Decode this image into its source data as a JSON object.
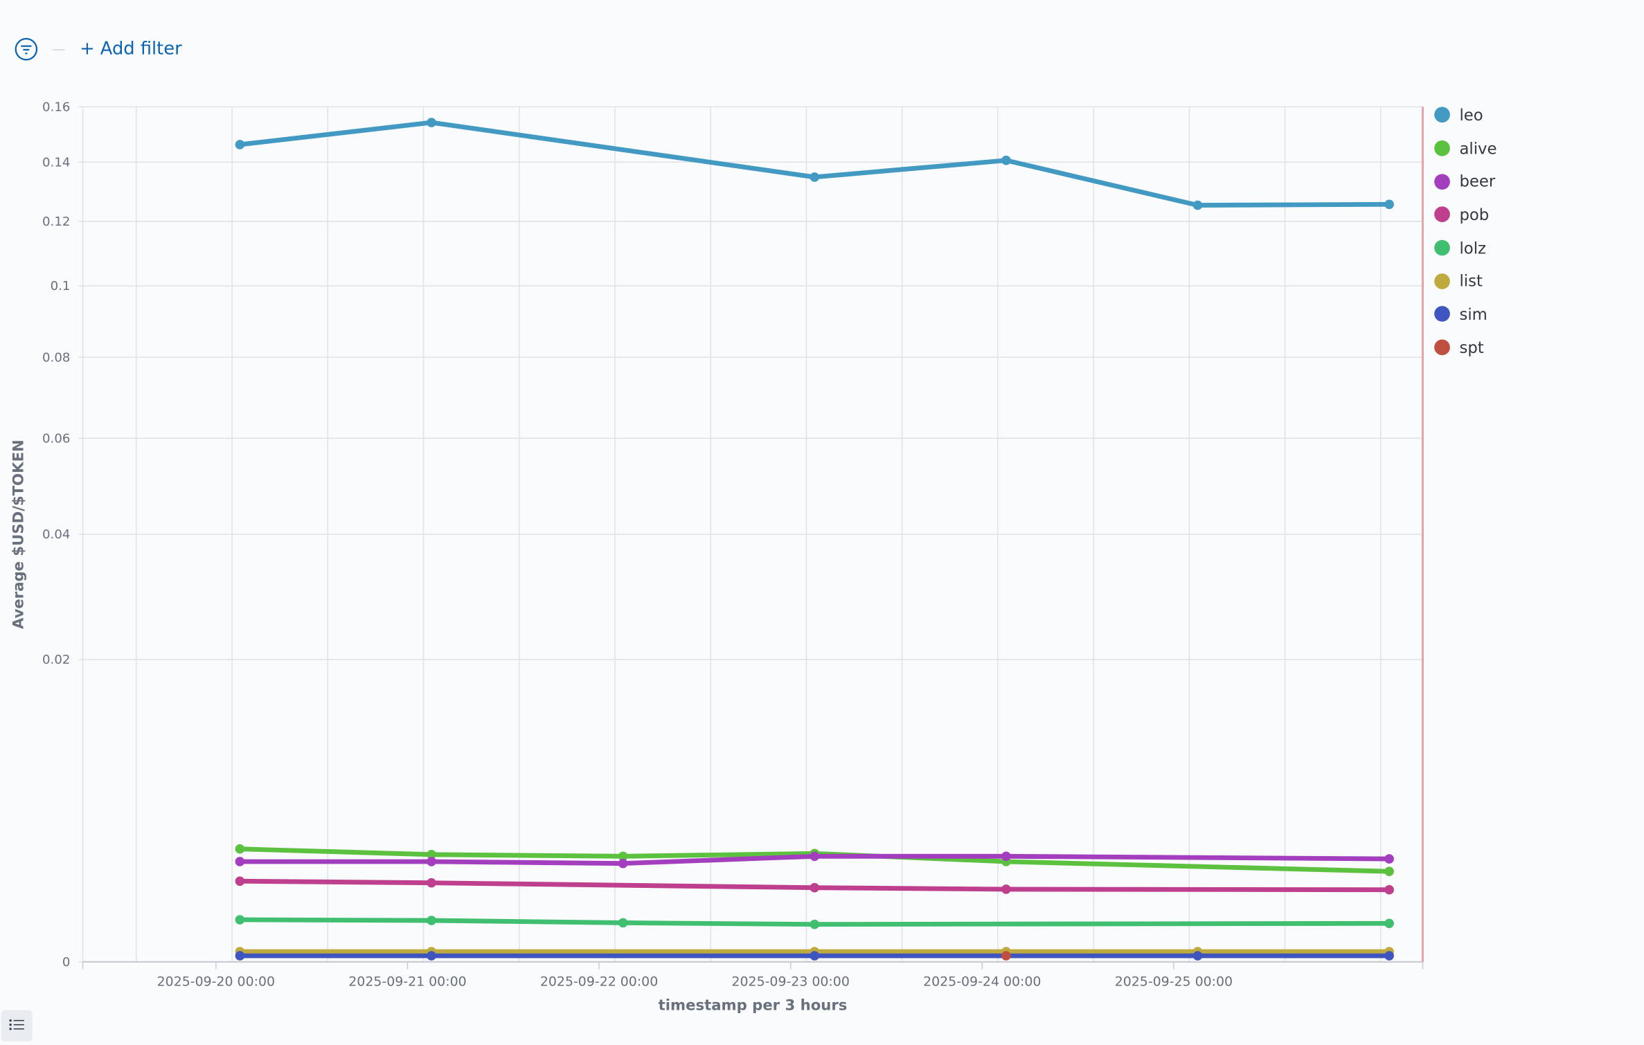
{
  "filter_bar": {
    "add_filter_label": "+ Add filter",
    "icon": "filter-icon"
  },
  "legend_toggle_icon": "list-icon",
  "chart_data": {
    "type": "line",
    "title": "",
    "xlabel": "timestamp per 3 hours",
    "ylabel": "Average $USD/$TOKEN",
    "y_scale": "sqrt",
    "ylim": [
      0,
      0.16
    ],
    "y_ticks": [
      0,
      0.02,
      0.04,
      0.06,
      0.08,
      0.1,
      0.12,
      0.14,
      0.16
    ],
    "y_tick_labels": [
      "0",
      "0.02",
      "0.04",
      "0.06",
      "0.08",
      "0.1",
      "0.12",
      "0.14",
      "0.16"
    ],
    "x_range_days": [
      -0.695,
      6.3
    ],
    "x_ticks_days": [
      0,
      1,
      2,
      3,
      4,
      5
    ],
    "x_tick_labels": [
      "2025-09-20 00:00",
      "2025-09-21 00:00",
      "2025-09-22 00:00",
      "2025-09-23 00:00",
      "2025-09-24 00:00",
      "2025-09-25 00:00"
    ],
    "x": [
      "2025-09-20 03:00",
      "2025-09-21 03:00",
      "2025-09-22 03:00",
      "2025-09-23 03:00",
      "2025-09-24 03:00",
      "2025-09-25 03:00",
      "2025-09-26 03:00"
    ],
    "x_days": [
      0.125,
      1.125,
      2.125,
      3.125,
      4.125,
      5.125,
      6.125
    ],
    "grid": true,
    "legend_position": "right",
    "series": [
      {
        "name": "leo",
        "color": "#4299c1",
        "values": [
          0.1462,
          0.1542,
          null,
          0.1348,
          0.1406,
          0.1253,
          0.1256
        ]
      },
      {
        "name": "alive",
        "color": "#5bc13f",
        "values": [
          0.00279,
          0.00252,
          0.00244,
          0.00257,
          0.0022,
          null,
          0.00179
        ]
      },
      {
        "name": "beer",
        "color": "#a33fbf",
        "values": [
          0.0022,
          0.0022,
          0.00212,
          0.00244,
          0.00244,
          null,
          0.00232
        ]
      },
      {
        "name": "pob",
        "color": "#bf3f8f",
        "values": [
          0.001425,
          0.001366,
          null,
          0.001204,
          0.001154,
          null,
          0.001137
        ]
      },
      {
        "name": "lolz",
        "color": "#3fbf6f",
        "values": [
          0.000388,
          0.000375,
          0.000334,
          0.000308,
          null,
          null,
          0.000324
        ]
      },
      {
        "name": "list",
        "color": "#bfaa3f",
        "values": [
          2.3e-05,
          2.3e-05,
          null,
          2.3e-05,
          2.3e-05,
          2.3e-05,
          2.3e-05
        ]
      },
      {
        "name": "sim",
        "color": "#3f55bf",
        "values": [
          8e-06,
          8e-06,
          null,
          8e-06,
          null,
          8e-06,
          8e-06
        ]
      },
      {
        "name": "spt",
        "color": "#bf4f3f",
        "values": [
          null,
          null,
          null,
          null,
          8e-06,
          null,
          null
        ]
      }
    ]
  }
}
